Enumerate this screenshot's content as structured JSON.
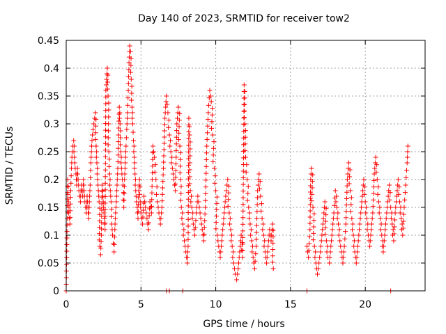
{
  "chart_data": {
    "type": "scatter",
    "title": "Day 140 of 2023, SRMTID for receiver tow2",
    "xlabel": "GPS time / hours",
    "ylabel": "SRMTID / TECUs",
    "xlim": [
      0,
      24
    ],
    "ylim": [
      0,
      0.45
    ],
    "xticks": [
      0,
      5,
      10,
      15,
      20
    ],
    "xtick_labels": [
      "0",
      "5",
      "10",
      "15",
      "20"
    ],
    "yticks": [
      0,
      0.05,
      0.1,
      0.15,
      0.2,
      0.25,
      0.3,
      0.35,
      0.4,
      0.45
    ],
    "ytick_labels": [
      "0",
      "0.05",
      "0.1",
      "0.15",
      "0.2",
      "0.25",
      "0.3",
      "0.35",
      "0.4",
      "0.45"
    ],
    "grid": true,
    "marker": "plus",
    "color": "#ff0000",
    "series": [
      {
        "name": "SRMTID",
        "points": [
          [
            0.0,
            0.0
          ],
          [
            0.05,
            0.095
          ],
          [
            0.1,
            0.2
          ],
          [
            0.15,
            0.16
          ],
          [
            0.2,
            0.13
          ],
          [
            0.25,
            0.12
          ],
          [
            0.3,
            0.18
          ],
          [
            0.35,
            0.22
          ],
          [
            0.4,
            0.25
          ],
          [
            0.45,
            0.26
          ],
          [
            0.5,
            0.27
          ],
          [
            0.55,
            0.24
          ],
          [
            0.6,
            0.22
          ],
          [
            0.65,
            0.21
          ],
          [
            0.7,
            0.19
          ],
          [
            0.75,
            0.22
          ],
          [
            0.8,
            0.2
          ],
          [
            0.85,
            0.18
          ],
          [
            0.9,
            0.17
          ],
          [
            0.95,
            0.16
          ],
          [
            1.0,
            0.19
          ],
          [
            1.05,
            0.18
          ],
          [
            1.1,
            0.17
          ],
          [
            1.15,
            0.2
          ],
          [
            1.2,
            0.18
          ],
          [
            1.25,
            0.16
          ],
          [
            1.3,
            0.15
          ],
          [
            1.35,
            0.14
          ],
          [
            1.4,
            0.17
          ],
          [
            1.45,
            0.15
          ],
          [
            1.5,
            0.13
          ],
          [
            1.55,
            0.16
          ],
          [
            1.6,
            0.19
          ],
          [
            1.65,
            0.23
          ],
          [
            1.7,
            0.26
          ],
          [
            1.75,
            0.28
          ],
          [
            1.8,
            0.29
          ],
          [
            1.85,
            0.3
          ],
          [
            1.9,
            0.31
          ],
          [
            1.95,
            0.32
          ],
          [
            2.0,
            0.26
          ],
          [
            2.05,
            0.23
          ],
          [
            2.1,
            0.2
          ],
          [
            2.15,
            0.18
          ],
          [
            2.2,
            0.16
          ],
          [
            2.25,
            0.08
          ],
          [
            2.3,
            0.065
          ],
          [
            2.35,
            0.1
          ],
          [
            2.4,
            0.19
          ],
          [
            2.45,
            0.17
          ],
          [
            2.5,
            0.15
          ],
          [
            2.55,
            0.13
          ],
          [
            2.6,
            0.11
          ],
          [
            2.65,
            0.36
          ],
          [
            2.7,
            0.38
          ],
          [
            2.75,
            0.4
          ],
          [
            2.8,
            0.35
          ],
          [
            2.85,
            0.25
          ],
          [
            2.9,
            0.21
          ],
          [
            2.95,
            0.18
          ],
          [
            3.0,
            0.16
          ],
          [
            3.05,
            0.12
          ],
          [
            3.1,
            0.1
          ],
          [
            3.15,
            0.085
          ],
          [
            3.2,
            0.07
          ],
          [
            3.25,
            0.11
          ],
          [
            3.3,
            0.14
          ],
          [
            3.35,
            0.16
          ],
          [
            3.4,
            0.19
          ],
          [
            3.45,
            0.22
          ],
          [
            3.5,
            0.28
          ],
          [
            3.55,
            0.33
          ],
          [
            3.6,
            0.3
          ],
          [
            3.65,
            0.25
          ],
          [
            3.7,
            0.22
          ],
          [
            3.75,
            0.2
          ],
          [
            3.8,
            0.19
          ],
          [
            3.85,
            0.15
          ],
          [
            3.9,
            0.2
          ],
          [
            3.95,
            0.23
          ],
          [
            4.0,
            0.26
          ],
          [
            4.05,
            0.29
          ],
          [
            4.1,
            0.32
          ],
          [
            4.15,
            0.36
          ],
          [
            4.2,
            0.41
          ],
          [
            4.25,
            0.44
          ],
          [
            4.3,
            0.43
          ],
          [
            4.35,
            0.38
          ],
          [
            4.4,
            0.33
          ],
          [
            4.45,
            0.3
          ],
          [
            4.5,
            0.27
          ],
          [
            4.55,
            0.24
          ],
          [
            4.6,
            0.21
          ],
          [
            4.65,
            0.18
          ],
          [
            4.7,
            0.16
          ],
          [
            4.75,
            0.15
          ],
          [
            4.8,
            0.13
          ],
          [
            4.85,
            0.18
          ],
          [
            4.9,
            0.2
          ],
          [
            4.95,
            0.16
          ],
          [
            5.0,
            0.14
          ],
          [
            5.1,
            0.12
          ],
          [
            5.2,
            0.17
          ],
          [
            5.3,
            0.15
          ],
          [
            5.4,
            0.13
          ],
          [
            5.5,
            0.11
          ],
          [
            5.6,
            0.16
          ],
          [
            5.7,
            0.14
          ],
          [
            5.8,
            0.26
          ],
          [
            5.9,
            0.24
          ],
          [
            6.0,
            0.2
          ],
          [
            6.1,
            0.16
          ],
          [
            6.2,
            0.14
          ],
          [
            6.3,
            0.12
          ],
          [
            6.4,
            0.15
          ],
          [
            6.5,
            0.22
          ],
          [
            6.6,
            0.31
          ],
          [
            6.65,
            0.33
          ],
          [
            6.7,
            0.35
          ],
          [
            6.8,
            0.32
          ],
          [
            6.9,
            0.28
          ],
          [
            7.0,
            0.25
          ],
          [
            7.1,
            0.22
          ],
          [
            7.2,
            0.2
          ],
          [
            7.3,
            0.18
          ],
          [
            7.4,
            0.3
          ],
          [
            7.5,
            0.33
          ],
          [
            7.6,
            0.26
          ],
          [
            7.65,
            0.2
          ],
          [
            7.7,
            0.15
          ],
          [
            7.8,
            0.12
          ],
          [
            7.9,
            0.09
          ],
          [
            8.0,
            0.07
          ],
          [
            8.1,
            0.05
          ],
          [
            8.15,
            0.08
          ],
          [
            8.2,
            0.31
          ],
          [
            8.25,
            0.28
          ],
          [
            8.3,
            0.18
          ],
          [
            8.4,
            0.15
          ],
          [
            8.5,
            0.12
          ],
          [
            8.6,
            0.1
          ],
          [
            8.7,
            0.14
          ],
          [
            8.8,
            0.17
          ],
          [
            8.9,
            0.15
          ],
          [
            9.0,
            0.13
          ],
          [
            9.1,
            0.11
          ],
          [
            9.2,
            0.09
          ],
          [
            9.3,
            0.15
          ],
          [
            9.4,
            0.26
          ],
          [
            9.5,
            0.32
          ],
          [
            9.6,
            0.36
          ],
          [
            9.7,
            0.34
          ],
          [
            9.8,
            0.28
          ],
          [
            9.9,
            0.22
          ],
          [
            10.0,
            0.18
          ],
          [
            10.1,
            0.1
          ],
          [
            10.2,
            0.08
          ],
          [
            10.3,
            0.06
          ],
          [
            10.4,
            0.09
          ],
          [
            10.5,
            0.12
          ],
          [
            10.6,
            0.15
          ],
          [
            10.7,
            0.18
          ],
          [
            10.8,
            0.2
          ],
          [
            10.9,
            0.14
          ],
          [
            11.0,
            0.11
          ],
          [
            11.1,
            0.08
          ],
          [
            11.2,
            0.05
          ],
          [
            11.3,
            0.03
          ],
          [
            11.4,
            0.02
          ],
          [
            11.5,
            0.04
          ],
          [
            11.6,
            0.07
          ],
          [
            11.7,
            0.1
          ],
          [
            11.8,
            0.06
          ],
          [
            11.9,
            0.37
          ],
          [
            11.95,
            0.3
          ],
          [
            12.0,
            0.24
          ],
          [
            12.1,
            0.2
          ],
          [
            12.2,
            0.15
          ],
          [
            12.3,
            0.12
          ],
          [
            12.4,
            0.09
          ],
          [
            12.5,
            0.06
          ],
          [
            12.6,
            0.04
          ],
          [
            12.7,
            0.08
          ],
          [
            12.8,
            0.18
          ],
          [
            12.9,
            0.21
          ],
          [
            13.0,
            0.17
          ],
          [
            13.1,
            0.13
          ],
          [
            13.2,
            0.1
          ],
          [
            13.3,
            0.07
          ],
          [
            13.4,
            0.05
          ],
          [
            13.5,
            0.08
          ],
          [
            13.6,
            0.11
          ],
          [
            13.7,
            0.09
          ],
          [
            13.8,
            0.12
          ],
          [
            13.85,
            0.04
          ],
          [
            16.1,
            0.08
          ],
          [
            16.2,
            0.06
          ],
          [
            16.3,
            0.11
          ],
          [
            16.35,
            0.2
          ],
          [
            16.4,
            0.22
          ],
          [
            16.5,
            0.15
          ],
          [
            16.6,
            0.08
          ],
          [
            16.7,
            0.05
          ],
          [
            16.8,
            0.03
          ],
          [
            16.9,
            0.05
          ],
          [
            17.0,
            0.07
          ],
          [
            17.1,
            0.1
          ],
          [
            17.2,
            0.13
          ],
          [
            17.3,
            0.16
          ],
          [
            17.4,
            0.09
          ],
          [
            17.5,
            0.06
          ],
          [
            17.6,
            0.05
          ],
          [
            17.7,
            0.08
          ],
          [
            17.8,
            0.11
          ],
          [
            17.9,
            0.14
          ],
          [
            18.0,
            0.18
          ],
          [
            18.1,
            0.15
          ],
          [
            18.2,
            0.12
          ],
          [
            18.3,
            0.09
          ],
          [
            18.4,
            0.07
          ],
          [
            18.5,
            0.05
          ],
          [
            18.6,
            0.08
          ],
          [
            18.7,
            0.12
          ],
          [
            18.8,
            0.2
          ],
          [
            18.9,
            0.23
          ],
          [
            19.0,
            0.18
          ],
          [
            19.1,
            0.13
          ],
          [
            19.2,
            0.1
          ],
          [
            19.3,
            0.07
          ],
          [
            19.4,
            0.05
          ],
          [
            19.5,
            0.08
          ],
          [
            19.6,
            0.11
          ],
          [
            19.7,
            0.14
          ],
          [
            19.8,
            0.17
          ],
          [
            19.9,
            0.2
          ],
          [
            20.0,
            0.16
          ],
          [
            20.1,
            0.13
          ],
          [
            20.2,
            0.1
          ],
          [
            20.3,
            0.08
          ],
          [
            20.4,
            0.11
          ],
          [
            20.5,
            0.14
          ],
          [
            20.6,
            0.21
          ],
          [
            20.7,
            0.24
          ],
          [
            20.8,
            0.2
          ],
          [
            20.9,
            0.16
          ],
          [
            21.0,
            0.13
          ],
          [
            21.1,
            0.1
          ],
          [
            21.2,
            0.07
          ],
          [
            21.3,
            0.1
          ],
          [
            21.4,
            0.13
          ],
          [
            21.5,
            0.16
          ],
          [
            21.6,
            0.19
          ],
          [
            21.7,
            0.15
          ],
          [
            21.8,
            0.12
          ],
          [
            21.9,
            0.09
          ],
          [
            22.0,
            0.14
          ],
          [
            22.1,
            0.17
          ],
          [
            22.2,
            0.2
          ],
          [
            22.3,
            0.16
          ],
          [
            22.4,
            0.13
          ],
          [
            22.5,
            0.1
          ],
          [
            22.6,
            0.15
          ],
          [
            22.7,
            0.19
          ],
          [
            22.8,
            0.23
          ],
          [
            22.85,
            0.26
          ]
        ]
      }
    ],
    "zero_markers_x": [
      0.0,
      6.7,
      6.9,
      7.8,
      16.1,
      21.7
    ]
  }
}
